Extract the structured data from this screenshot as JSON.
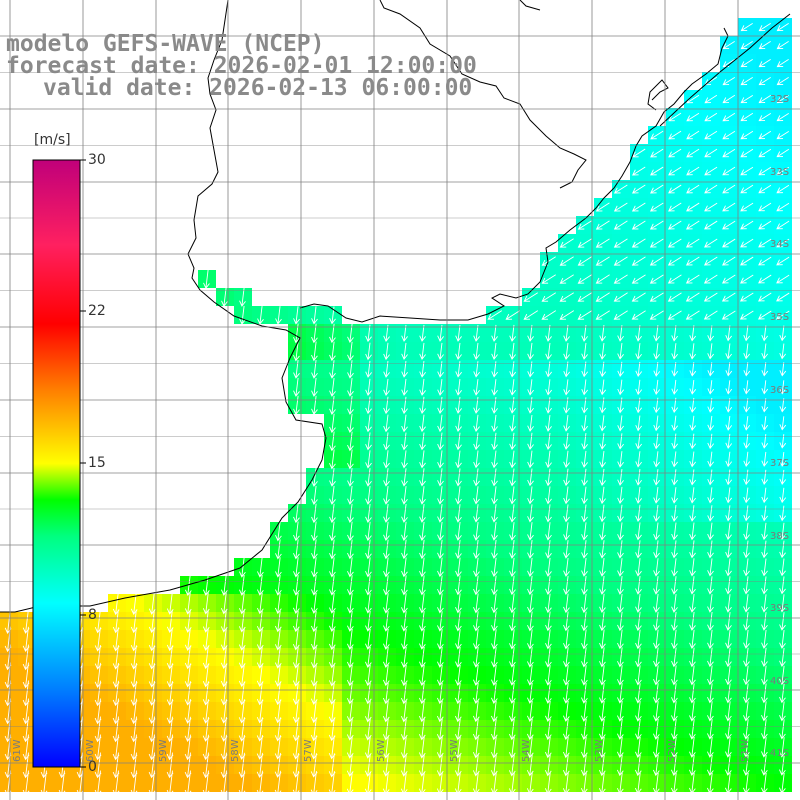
{
  "title": {
    "line1": "modelo GEFS-WAVE (NCEP)",
    "line2": "forecast date: 2026-02-01 12:00:00",
    "line3": "valid date: 2026-02-13 06:00:00"
  },
  "colorbar": {
    "unit": "[m/s]",
    "min": 0,
    "max": 30,
    "ticks": [
      "30",
      "22",
      "15",
      "8",
      "0"
    ]
  },
  "map": {
    "lon_range": [
      -61,
      -50
    ],
    "lat_range": [
      -41.2,
      -30.5
    ],
    "lat_labels": [
      "32S",
      "33S",
      "34S",
      "35S",
      "36S",
      "37S",
      "38S",
      "39S",
      "40S",
      "41S"
    ],
    "lon_labels": [
      "61W",
      "60W",
      "59W",
      "58W",
      "57W",
      "56W",
      "55W",
      "54W",
      "53W",
      "52W",
      "51W"
    ],
    "colors": {
      "land": "#ffffff",
      "coastline": "#000000",
      "grid": "#808080",
      "arrows": "#ffffff"
    },
    "field": "wind speed with white direction arrows, roughly southward"
  }
}
